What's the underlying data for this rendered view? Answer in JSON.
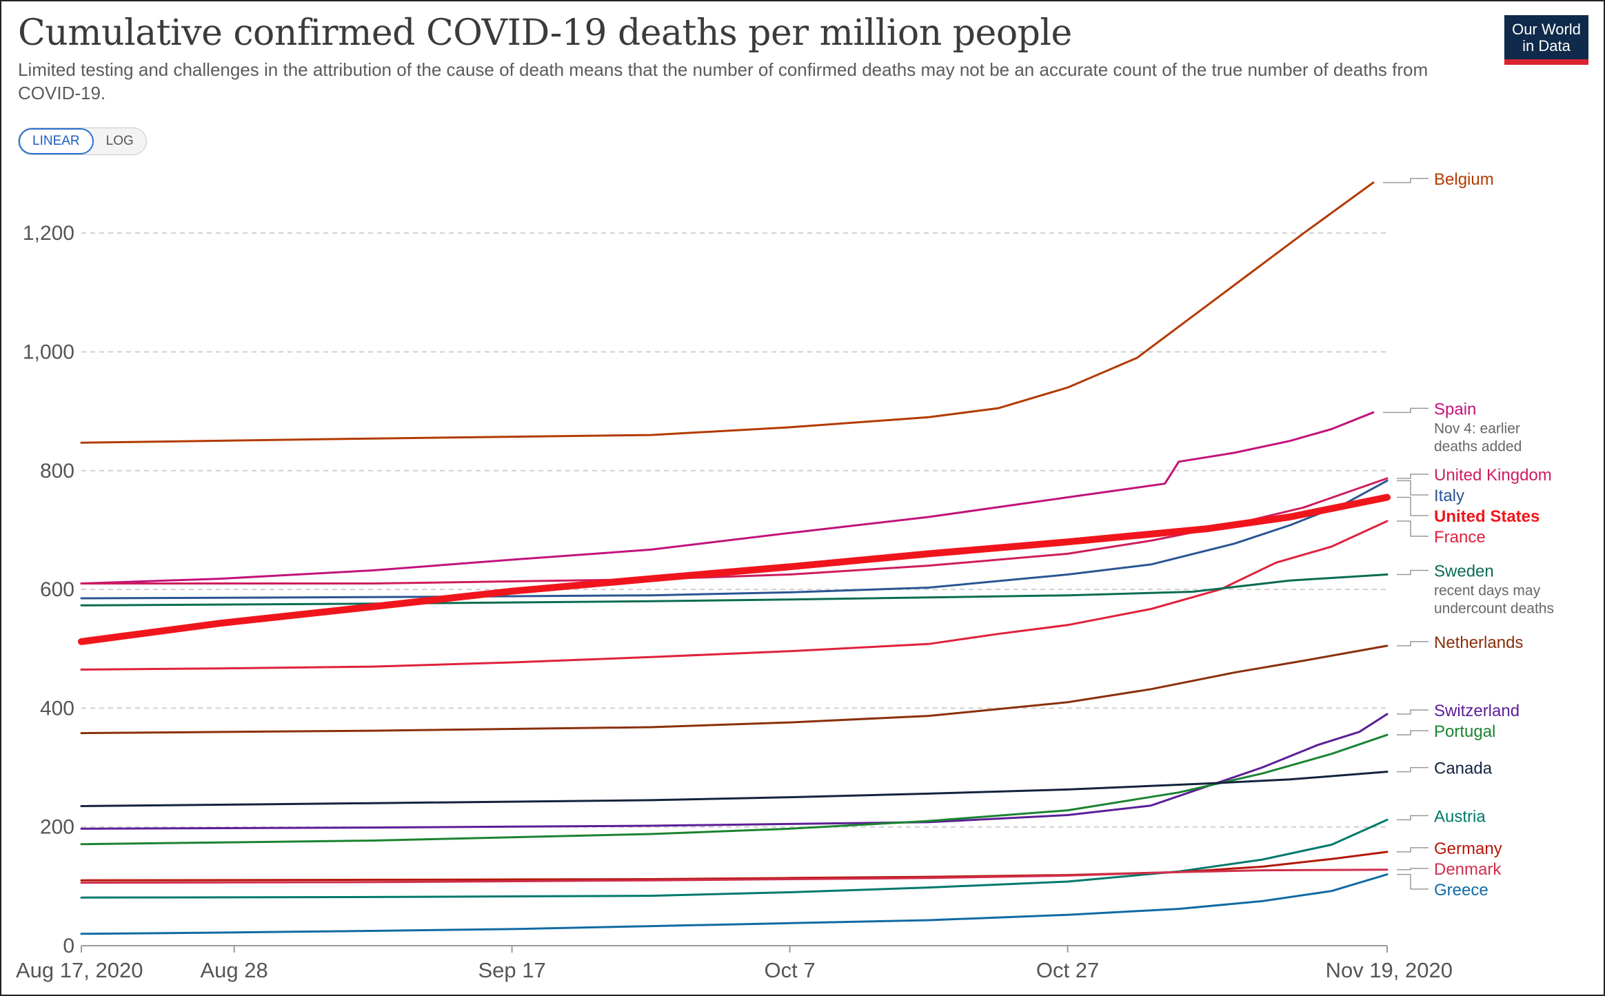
{
  "header": {
    "title": "Cumulative confirmed COVID-19 deaths per million people",
    "subtitle": "Limited testing and challenges in the attribution of the cause of death means that the number of confirmed deaths may not be an accurate count of the true number of deaths from COVID-19."
  },
  "logo": {
    "line1": "Our World",
    "line2": "in Data"
  },
  "toggle": {
    "linear_label": "LINEAR",
    "log_label": "LOG",
    "active": "LINEAR"
  },
  "chart_data": {
    "type": "line",
    "x_type": "date",
    "xlim": [
      "2020-08-17",
      "2020-11-19"
    ],
    "ylim": [
      0,
      1300
    ],
    "x_ticks": [
      {
        "date": "2020-08-17",
        "label": "Aug 17, 2020"
      },
      {
        "date": "2020-08-28",
        "label": "Aug 28"
      },
      {
        "date": "2020-09-17",
        "label": "Sep 17"
      },
      {
        "date": "2020-10-07",
        "label": "Oct 7"
      },
      {
        "date": "2020-10-27",
        "label": "Oct 27"
      },
      {
        "date": "2020-11-19",
        "label": "Nov 19, 2020"
      }
    ],
    "y_ticks": [
      {
        "value": 0,
        "label": "0"
      },
      {
        "value": 200,
        "label": "200"
      },
      {
        "value": 400,
        "label": "400"
      },
      {
        "value": 600,
        "label": "600"
      },
      {
        "value": 800,
        "label": "800"
      },
      {
        "value": 1000,
        "label": "1,000"
      },
      {
        "value": 1200,
        "label": "1,200"
      }
    ],
    "grid": "horizontal-dashed",
    "legend": "right-end labels",
    "series": [
      {
        "name": "Belgium",
        "color": "#b33a00",
        "points": [
          [
            "2020-08-17",
            847
          ],
          [
            "2020-09-07",
            854
          ],
          [
            "2020-09-27",
            860
          ],
          [
            "2020-10-07",
            873
          ],
          [
            "2020-10-17",
            890
          ],
          [
            "2020-10-22",
            905
          ],
          [
            "2020-10-27",
            940
          ],
          [
            "2020-11-01",
            990
          ],
          [
            "2020-11-05",
            1060
          ],
          [
            "2020-11-09",
            1130
          ],
          [
            "2020-11-13",
            1200
          ],
          [
            "2020-11-18",
            1285
          ]
        ]
      },
      {
        "name": "Spain",
        "note": "Nov 4: earlier deaths added",
        "color": "#c2127b",
        "points": [
          [
            "2020-08-17",
            610
          ],
          [
            "2020-08-27",
            618
          ],
          [
            "2020-09-07",
            632
          ],
          [
            "2020-09-17",
            650
          ],
          [
            "2020-09-27",
            667
          ],
          [
            "2020-10-07",
            695
          ],
          [
            "2020-10-17",
            722
          ],
          [
            "2020-10-27",
            755
          ],
          [
            "2020-11-03",
            778
          ],
          [
            "2020-11-04",
            815
          ],
          [
            "2020-11-08",
            830
          ],
          [
            "2020-11-12",
            850
          ],
          [
            "2020-11-15",
            870
          ],
          [
            "2020-11-18",
            898
          ]
        ]
      },
      {
        "name": "United Kingdom",
        "color": "#cf1c5e",
        "points": [
          [
            "2020-08-17",
            610
          ],
          [
            "2020-09-07",
            610
          ],
          [
            "2020-09-27",
            617
          ],
          [
            "2020-10-07",
            625
          ],
          [
            "2020-10-17",
            640
          ],
          [
            "2020-10-27",
            660
          ],
          [
            "2020-11-02",
            682
          ],
          [
            "2020-11-08",
            710
          ],
          [
            "2020-11-13",
            738
          ],
          [
            "2020-11-19",
            787
          ]
        ]
      },
      {
        "name": "Italy",
        "color": "#2a5593",
        "points": [
          [
            "2020-08-17",
            585
          ],
          [
            "2020-09-07",
            587
          ],
          [
            "2020-09-27",
            590
          ],
          [
            "2020-10-07",
            595
          ],
          [
            "2020-10-17",
            603
          ],
          [
            "2020-10-27",
            625
          ],
          [
            "2020-11-02",
            642
          ],
          [
            "2020-11-08",
            677
          ],
          [
            "2020-11-12",
            708
          ],
          [
            "2020-11-16",
            745
          ],
          [
            "2020-11-19",
            783
          ]
        ]
      },
      {
        "name": "United States",
        "color": "#f0151c",
        "emphasis": true,
        "points": [
          [
            "2020-08-17",
            512
          ],
          [
            "2020-08-27",
            543
          ],
          [
            "2020-09-07",
            571
          ],
          [
            "2020-09-17",
            597
          ],
          [
            "2020-09-27",
            618
          ],
          [
            "2020-10-07",
            638
          ],
          [
            "2020-10-17",
            660
          ],
          [
            "2020-10-27",
            680
          ],
          [
            "2020-11-06",
            702
          ],
          [
            "2020-11-12",
            722
          ],
          [
            "2020-11-19",
            755
          ]
        ]
      },
      {
        "name": "France",
        "color": "#e0213c",
        "points": [
          [
            "2020-08-17",
            465
          ],
          [
            "2020-08-27",
            467
          ],
          [
            "2020-09-07",
            470
          ],
          [
            "2020-09-17",
            477
          ],
          [
            "2020-09-27",
            486
          ],
          [
            "2020-10-07",
            496
          ],
          [
            "2020-10-17",
            508
          ],
          [
            "2020-10-22",
            525
          ],
          [
            "2020-10-27",
            540
          ],
          [
            "2020-11-02",
            567
          ],
          [
            "2020-11-07",
            600
          ],
          [
            "2020-11-11",
            645
          ],
          [
            "2020-11-15",
            672
          ],
          [
            "2020-11-19",
            715
          ]
        ]
      },
      {
        "name": "Sweden",
        "note": "recent days may undercount deaths",
        "color": "#0a6c52",
        "points": [
          [
            "2020-08-17",
            573
          ],
          [
            "2020-09-07",
            576
          ],
          [
            "2020-09-27",
            580
          ],
          [
            "2020-10-07",
            583
          ],
          [
            "2020-10-27",
            590
          ],
          [
            "2020-11-05",
            596
          ],
          [
            "2020-11-12",
            615
          ],
          [
            "2020-11-19",
            625
          ]
        ]
      },
      {
        "name": "Netherlands",
        "color": "#8a2f0b",
        "points": [
          [
            "2020-08-17",
            358
          ],
          [
            "2020-09-07",
            362
          ],
          [
            "2020-09-27",
            368
          ],
          [
            "2020-10-07",
            376
          ],
          [
            "2020-10-17",
            387
          ],
          [
            "2020-10-27",
            410
          ],
          [
            "2020-11-02",
            432
          ],
          [
            "2020-11-08",
            460
          ],
          [
            "2020-11-13",
            480
          ],
          [
            "2020-11-19",
            505
          ]
        ]
      },
      {
        "name": "Switzerland",
        "color": "#5c1e97",
        "points": [
          [
            "2020-08-17",
            197
          ],
          [
            "2020-09-07",
            199
          ],
          [
            "2020-09-27",
            202
          ],
          [
            "2020-10-07",
            205
          ],
          [
            "2020-10-17",
            208
          ],
          [
            "2020-10-27",
            220
          ],
          [
            "2020-11-02",
            236
          ],
          [
            "2020-11-06",
            268
          ],
          [
            "2020-11-10",
            300
          ],
          [
            "2020-11-14",
            338
          ],
          [
            "2020-11-17",
            360
          ],
          [
            "2020-11-19",
            390
          ]
        ]
      },
      {
        "name": "Portugal",
        "color": "#1a8330",
        "points": [
          [
            "2020-08-17",
            171
          ],
          [
            "2020-09-07",
            177
          ],
          [
            "2020-09-27",
            188
          ],
          [
            "2020-10-07",
            197
          ],
          [
            "2020-10-17",
            210
          ],
          [
            "2020-10-27",
            228
          ],
          [
            "2020-11-04",
            258
          ],
          [
            "2020-11-10",
            290
          ],
          [
            "2020-11-15",
            323
          ],
          [
            "2020-11-19",
            355
          ]
        ]
      },
      {
        "name": "Canada",
        "color": "#13233e",
        "points": [
          [
            "2020-08-17",
            235
          ],
          [
            "2020-09-07",
            240
          ],
          [
            "2020-09-27",
            245
          ],
          [
            "2020-10-07",
            250
          ],
          [
            "2020-10-17",
            256
          ],
          [
            "2020-10-27",
            263
          ],
          [
            "2020-11-06",
            273
          ],
          [
            "2020-11-12",
            280
          ],
          [
            "2020-11-19",
            293
          ]
        ]
      },
      {
        "name": "Austria",
        "color": "#00796b",
        "points": [
          [
            "2020-08-17",
            81
          ],
          [
            "2020-09-07",
            82
          ],
          [
            "2020-09-27",
            84
          ],
          [
            "2020-10-07",
            90
          ],
          [
            "2020-10-17",
            98
          ],
          [
            "2020-10-27",
            108
          ],
          [
            "2020-11-04",
            125
          ],
          [
            "2020-11-10",
            145
          ],
          [
            "2020-11-15",
            170
          ],
          [
            "2020-11-19",
            212
          ]
        ]
      },
      {
        "name": "Germany",
        "color": "#b5170a",
        "points": [
          [
            "2020-08-17",
            110
          ],
          [
            "2020-09-07",
            111
          ],
          [
            "2020-09-27",
            112
          ],
          [
            "2020-10-07",
            114
          ],
          [
            "2020-10-17",
            116
          ],
          [
            "2020-10-27",
            119
          ],
          [
            "2020-11-04",
            124
          ],
          [
            "2020-11-10",
            133
          ],
          [
            "2020-11-15",
            146
          ],
          [
            "2020-11-19",
            158
          ]
        ]
      },
      {
        "name": "Denmark",
        "color": "#d02e4d",
        "points": [
          [
            "2020-08-17",
            106
          ],
          [
            "2020-09-07",
            107
          ],
          [
            "2020-09-27",
            110
          ],
          [
            "2020-10-07",
            112
          ],
          [
            "2020-10-17",
            114
          ],
          [
            "2020-10-27",
            118
          ],
          [
            "2020-11-04",
            124
          ],
          [
            "2020-11-10",
            127
          ],
          [
            "2020-11-19",
            128
          ]
        ]
      },
      {
        "name": "Greece",
        "color": "#106aa3",
        "points": [
          [
            "2020-08-17",
            20
          ],
          [
            "2020-08-27",
            22
          ],
          [
            "2020-09-07",
            25
          ],
          [
            "2020-09-17",
            28
          ],
          [
            "2020-09-27",
            33
          ],
          [
            "2020-10-07",
            38
          ],
          [
            "2020-10-17",
            43
          ],
          [
            "2020-10-27",
            52
          ],
          [
            "2020-11-04",
            62
          ],
          [
            "2020-11-10",
            75
          ],
          [
            "2020-11-15",
            92
          ],
          [
            "2020-11-19",
            120
          ]
        ]
      }
    ]
  }
}
